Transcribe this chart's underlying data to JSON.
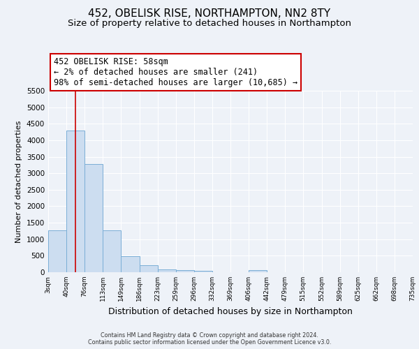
{
  "title": "452, OBELISK RISE, NORTHAMPTON, NN2 8TY",
  "subtitle": "Size of property relative to detached houses in Northampton",
  "xlabel": "Distribution of detached houses by size in Northampton",
  "ylabel": "Number of detached properties",
  "bin_edges": [
    3,
    40,
    76,
    113,
    149,
    186,
    223,
    259,
    296,
    332,
    369,
    406,
    442,
    479,
    515,
    552,
    589,
    625,
    662,
    698,
    735
  ],
  "bar_heights": [
    1270,
    4300,
    3270,
    1270,
    480,
    220,
    90,
    65,
    45,
    0,
    0,
    55,
    0,
    0,
    0,
    0,
    0,
    0,
    0,
    0
  ],
  "bar_color": "#ccddf0",
  "bar_edgecolor": "#7aaed6",
  "property_line_x": 58,
  "property_line_color": "#cc0000",
  "ylim": [
    0,
    5500
  ],
  "yticks": [
    0,
    500,
    1000,
    1500,
    2000,
    2500,
    3000,
    3500,
    4000,
    4500,
    5000,
    5500
  ],
  "xtick_labels": [
    "3sqm",
    "40sqm",
    "76sqm",
    "113sqm",
    "149sqm",
    "186sqm",
    "223sqm",
    "259sqm",
    "296sqm",
    "332sqm",
    "369sqm",
    "406sqm",
    "442sqm",
    "479sqm",
    "515sqm",
    "552sqm",
    "589sqm",
    "625sqm",
    "662sqm",
    "698sqm",
    "735sqm"
  ],
  "annotation_text": "452 OBELISK RISE: 58sqm\n← 2% of detached houses are smaller (241)\n98% of semi-detached houses are larger (10,685) →",
  "annotation_box_color": "#cc0000",
  "annotation_fontsize": 8.5,
  "background_color": "#eef2f8",
  "grid_color": "#ffffff",
  "title_fontsize": 11,
  "subtitle_fontsize": 9.5,
  "axis_label_fontsize": 9,
  "ylabel_fontsize": 8,
  "xtick_fontsize": 6.5,
  "ytick_fontsize": 7.5,
  "footer_line1": "Contains HM Land Registry data © Crown copyright and database right 2024.",
  "footer_line2": "Contains public sector information licensed under the Open Government Licence v3.0."
}
